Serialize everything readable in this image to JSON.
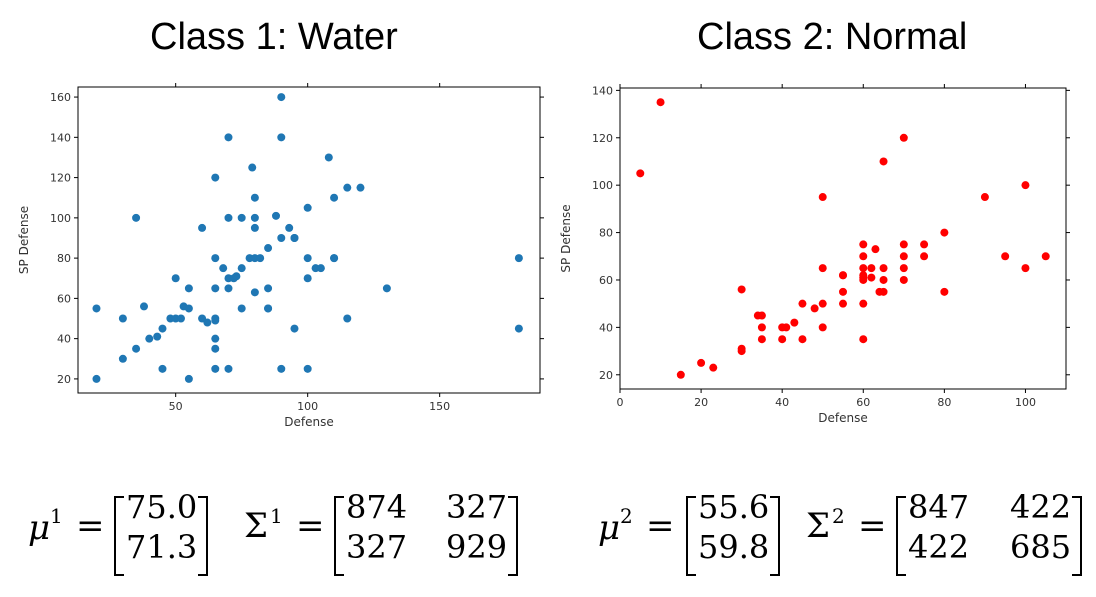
{
  "chart_data": [
    {
      "type": "scatter",
      "title": "Class 1: Water",
      "xlabel": "Defense",
      "ylabel": "SP Defense",
      "xlim": [
        13,
        188
      ],
      "ylim": [
        13,
        165
      ],
      "xticks": [
        "50",
        "100",
        "150"
      ],
      "yticks": [
        "20",
        "40",
        "60",
        "80",
        "100",
        "120",
        "140",
        "160"
      ],
      "xtick_values": [
        50,
        100,
        150
      ],
      "ytick_values": [
        20,
        40,
        60,
        80,
        100,
        120,
        140,
        160
      ],
      "color": "#1f77b4",
      "series": [
        {
          "x": [
            20,
            20,
            30,
            30,
            35,
            35,
            38,
            40,
            43,
            45,
            45,
            48,
            50,
            50,
            52,
            53,
            55,
            55,
            55,
            60,
            60,
            62,
            65,
            65,
            65,
            65,
            65,
            65,
            65,
            65,
            68,
            70,
            70,
            70,
            70,
            70,
            72,
            73,
            75,
            75,
            75,
            78,
            79,
            80,
            80,
            80,
            80,
            80,
            82,
            85,
            85,
            85,
            85,
            88,
            90,
            90,
            90,
            90,
            93,
            95,
            95,
            95,
            100,
            100,
            100,
            100,
            103,
            105,
            108,
            110,
            110,
            110,
            115,
            115,
            120,
            130,
            180,
            180
          ],
          "y": [
            55,
            20,
            50,
            30,
            35,
            100,
            56,
            40,
            41,
            25,
            45,
            50,
            50,
            70,
            50,
            56,
            55,
            65,
            20,
            95,
            50,
            48,
            120,
            80,
            65,
            50,
            49,
            40,
            35,
            25,
            75,
            140,
            100,
            70,
            65,
            25,
            70,
            71,
            75,
            100,
            55,
            80,
            125,
            95,
            110,
            80,
            100,
            63,
            80,
            85,
            65,
            55,
            55,
            101,
            160,
            140,
            90,
            25,
            95,
            90,
            45,
            90,
            105,
            80,
            70,
            25,
            75,
            75,
            130,
            110,
            80,
            80,
            115,
            50,
            115,
            65,
            80,
            45
          ]
        }
      ]
    },
    {
      "type": "scatter",
      "title": "Class 2: Normal",
      "xlabel": "Defense",
      "ylabel": "SP Defense",
      "xlim": [
        0,
        110
      ],
      "ylim": [
        14,
        141
      ],
      "xticks": [
        "0",
        "20",
        "40",
        "60",
        "80",
        "100"
      ],
      "yticks": [
        "20",
        "40",
        "60",
        "80",
        "100",
        "120",
        "140"
      ],
      "xtick_values": [
        0,
        20,
        40,
        60,
        80,
        100
      ],
      "ytick_values": [
        20,
        40,
        60,
        80,
        100,
        120,
        140
      ],
      "color": "#ff0000",
      "series": [
        {
          "x": [
            5,
            10,
            15,
            20,
            23,
            30,
            30,
            30,
            34,
            35,
            35,
            35,
            40,
            40,
            41,
            43,
            45,
            45,
            48,
            50,
            50,
            50,
            50,
            55,
            55,
            55,
            55,
            60,
            60,
            60,
            60,
            60,
            60,
            60,
            60,
            62,
            62,
            63,
            64,
            65,
            65,
            65,
            65,
            70,
            70,
            70,
            70,
            70,
            75,
            75,
            80,
            80,
            90,
            95,
            100,
            100,
            105
          ],
          "y": [
            105,
            135,
            20,
            25,
            23,
            30,
            31,
            56,
            45,
            45,
            35,
            40,
            35,
            40,
            40,
            42,
            50,
            35,
            48,
            95,
            65,
            50,
            40,
            62,
            55,
            50,
            62,
            75,
            70,
            65,
            60,
            50,
            35,
            61,
            62,
            65,
            61,
            73,
            55,
            110,
            65,
            60,
            55,
            120,
            75,
            70,
            65,
            60,
            75,
            70,
            80,
            55,
            95,
            70,
            100,
            65,
            70
          ]
        }
      ]
    },
    {
      "type": "table",
      "class1": {
        "mu_symbol": "μ",
        "mu_sup": "1",
        "mu": [
          "75.0",
          "71.3"
        ],
        "sigma_symbol": "Σ",
        "sigma_sup": "1",
        "sigma": [
          [
            "874",
            "327"
          ],
          [
            "327",
            "929"
          ]
        ]
      },
      "class2": {
        "mu_symbol": "μ",
        "mu_sup": "2",
        "mu": [
          "55.6",
          "59.8"
        ],
        "sigma_symbol": "Σ",
        "sigma_sup": "2",
        "sigma": [
          [
            "847",
            "422"
          ],
          [
            "422",
            "685"
          ]
        ]
      },
      "equals": "="
    }
  ]
}
